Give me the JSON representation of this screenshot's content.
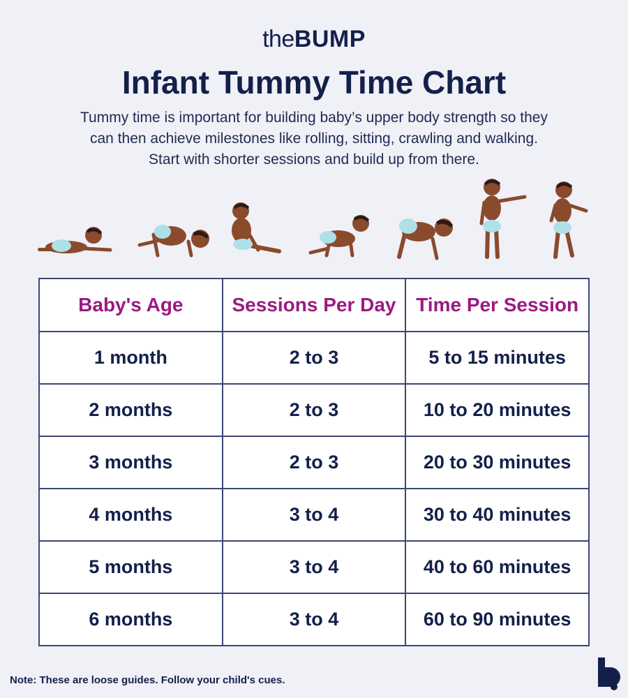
{
  "logo": {
    "prefix": "the",
    "brand": "BUMP"
  },
  "title": "Infant Tummy Time Chart",
  "intro": {
    "line1": "Tummy time is important for building baby’s upper body strength so they",
    "line2": "can then achieve milestones like rolling, sitting, crawling and walking.",
    "line3": "Start with shorter sessions and build up from there."
  },
  "illustration": {
    "icon": "baby-milestones-icon",
    "skin_color": "#8a4a2c",
    "hair_color": "#2e1a14",
    "diaper_color": "#aee0e8"
  },
  "table": {
    "headers": [
      "Baby's Age",
      "Sessions Per Day",
      "Time Per Session"
    ],
    "rows": [
      [
        "1 month",
        "2 to 3",
        "5 to 15 minutes"
      ],
      [
        "2 months",
        "2 to 3",
        "10 to 20 minutes"
      ],
      [
        "3 months",
        "2 to 3",
        "20 to 30 minutes"
      ],
      [
        "4 months",
        "3 to 4",
        "30 to 40 minutes"
      ],
      [
        "5 months",
        "3 to 4",
        "40 to 60 minutes"
      ],
      [
        "6 months",
        "3 to 4",
        "60 to 90 minutes"
      ]
    ]
  },
  "note": "Note: These are loose guides. Follow your child's cues.",
  "corner_logo": {
    "icon": "bump-b-icon"
  },
  "colors": {
    "background": "#f0f0f7",
    "navy": "#13204a",
    "header_magenta": "#9b1a82",
    "border": "#3c4676"
  }
}
